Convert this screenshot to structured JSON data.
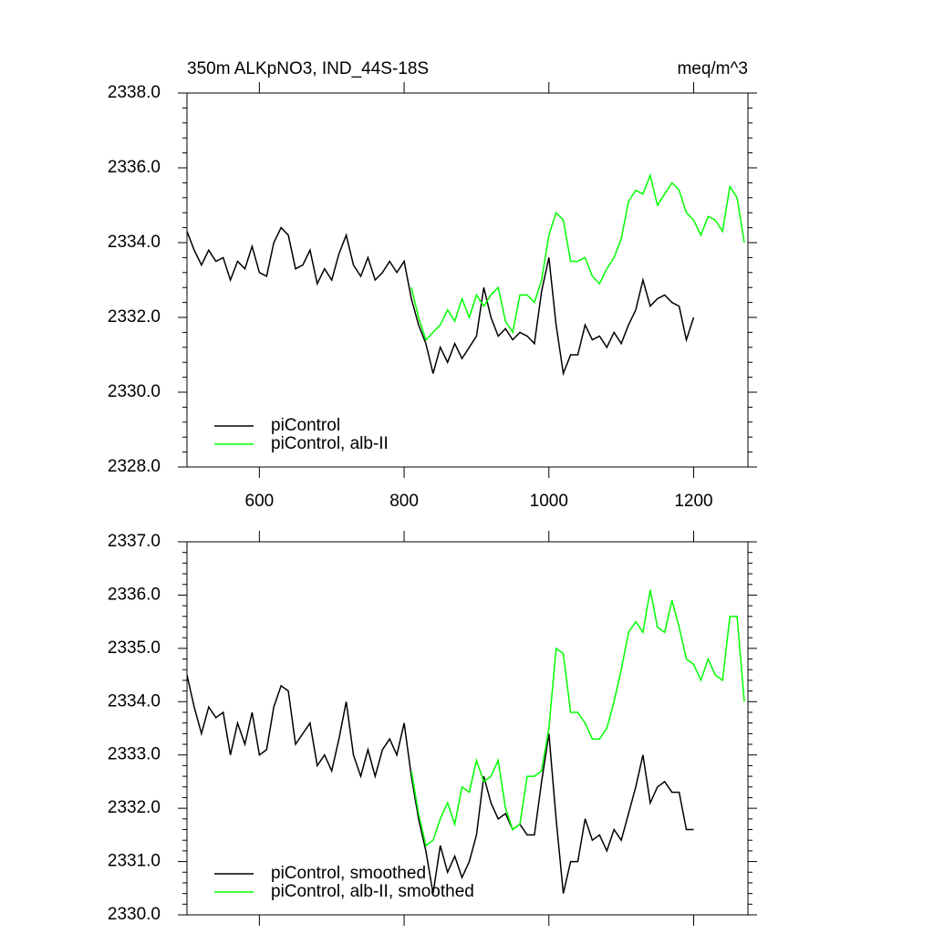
{
  "chart_data": [
    {
      "type": "line",
      "title": "350m ALKpNO3, IND_44S-18S",
      "units": "meq/m^3",
      "xlim": [
        500,
        1275
      ],
      "xticks": [
        600,
        800,
        1000,
        1200
      ],
      "show_xtick_labels": true,
      "ylim": [
        2328,
        2338
      ],
      "yticks": [
        {
          "value": 2328,
          "label": "2328.0"
        },
        {
          "value": 2330,
          "label": "2330.0"
        },
        {
          "value": 2332,
          "label": "2332.0"
        },
        {
          "value": 2334,
          "label": "2334.0"
        },
        {
          "value": 2336,
          "label": "2336.0"
        },
        {
          "value": 2338,
          "label": "2338.0"
        }
      ],
      "legend": "lower left",
      "series": [
        {
          "name": "piControl",
          "color": "#000000",
          "x": [
            500,
            510,
            520,
            530,
            540,
            550,
            560,
            570,
            580,
            590,
            600,
            610,
            620,
            630,
            640,
            650,
            660,
            670,
            680,
            690,
            700,
            710,
            720,
            730,
            740,
            750,
            760,
            770,
            780,
            790,
            800,
            810,
            820,
            830,
            840,
            850,
            860,
            870,
            880,
            890,
            900,
            910,
            920,
            930,
            940,
            950,
            960,
            970,
            980,
            990,
            1000,
            1010,
            1020,
            1030,
            1040,
            1050,
            1060,
            1070,
            1080,
            1090,
            1100,
            1110,
            1120,
            1130,
            1140,
            1150,
            1160,
            1170,
            1180,
            1190,
            1200
          ],
          "values": [
            2334.3,
            2333.8,
            2333.4,
            2333.8,
            2333.5,
            2333.6,
            2333.0,
            2333.5,
            2333.3,
            2333.9,
            2333.2,
            2333.1,
            2334.0,
            2334.4,
            2334.2,
            2333.3,
            2333.4,
            2333.8,
            2332.9,
            2333.3,
            2333.0,
            2333.7,
            2334.2,
            2333.4,
            2333.1,
            2333.6,
            2333.0,
            2333.2,
            2333.5,
            2333.2,
            2333.5,
            2332.5,
            2331.8,
            2331.3,
            2330.5,
            2331.2,
            2330.8,
            2331.3,
            2330.9,
            2331.2,
            2331.5,
            2332.8,
            2332.0,
            2331.5,
            2331.7,
            2331.4,
            2331.6,
            2331.5,
            2331.3,
            2332.7,
            2333.6,
            2331.8,
            2330.5,
            2331.0,
            2331.0,
            2331.8,
            2331.4,
            2331.5,
            2331.2,
            2331.6,
            2331.3,
            2331.8,
            2332.2,
            2333.0,
            2332.3,
            2332.5,
            2332.6,
            2332.4,
            2332.3,
            2331.4,
            2332.0
          ]
        },
        {
          "name": "piControl, alb-II",
          "color": "#00ff00",
          "x": [
            810,
            820,
            830,
            840,
            850,
            860,
            870,
            880,
            890,
            900,
            910,
            920,
            930,
            940,
            950,
            960,
            970,
            980,
            990,
            1000,
            1010,
            1020,
            1030,
            1040,
            1050,
            1060,
            1070,
            1080,
            1090,
            1100,
            1110,
            1120,
            1130,
            1140,
            1150,
            1160,
            1170,
            1180,
            1190,
            1200,
            1210,
            1220,
            1230,
            1240,
            1250,
            1260,
            1270
          ],
          "values": [
            2332.8,
            2332.0,
            2331.4,
            2331.6,
            2331.8,
            2332.2,
            2331.9,
            2332.5,
            2332.0,
            2332.6,
            2332.3,
            2332.6,
            2332.8,
            2331.9,
            2331.6,
            2332.6,
            2332.6,
            2332.4,
            2333.0,
            2334.2,
            2334.8,
            2334.6,
            2333.5,
            2333.5,
            2333.6,
            2333.1,
            2332.9,
            2333.3,
            2333.6,
            2334.1,
            2335.1,
            2335.4,
            2335.3,
            2335.8,
            2335.0,
            2335.3,
            2335.6,
            2335.4,
            2334.8,
            2334.6,
            2334.2,
            2334.7,
            2334.6,
            2334.3,
            2335.5,
            2335.2,
            2334.0
          ]
        }
      ]
    },
    {
      "type": "line",
      "xlim": [
        500,
        1275
      ],
      "xticks": [
        600,
        800,
        1000,
        1200
      ],
      "show_xtick_labels": false,
      "ylim": [
        2330,
        2337
      ],
      "yticks": [
        {
          "value": 2330,
          "label": "2330.0"
        },
        {
          "value": 2331,
          "label": "2331.0"
        },
        {
          "value": 2332,
          "label": "2332.0"
        },
        {
          "value": 2333,
          "label": "2333.0"
        },
        {
          "value": 2334,
          "label": "2334.0"
        },
        {
          "value": 2335,
          "label": "2335.0"
        },
        {
          "value": 2336,
          "label": "2336.0"
        },
        {
          "value": 2337,
          "label": "2337.0"
        }
      ],
      "legend": "lower left",
      "series": [
        {
          "name": "piControl, smoothed",
          "color": "#000000",
          "x": [
            500,
            510,
            520,
            530,
            540,
            550,
            560,
            570,
            580,
            590,
            600,
            610,
            620,
            630,
            640,
            650,
            660,
            670,
            680,
            690,
            700,
            710,
            720,
            730,
            740,
            750,
            760,
            770,
            780,
            790,
            800,
            810,
            820,
            830,
            840,
            850,
            860,
            870,
            880,
            890,
            900,
            910,
            920,
            930,
            940,
            950,
            960,
            970,
            980,
            990,
            1000,
            1010,
            1020,
            1030,
            1040,
            1050,
            1060,
            1070,
            1080,
            1090,
            1100,
            1110,
            1120,
            1130,
            1140,
            1150,
            1160,
            1170,
            1180,
            1190,
            1200
          ],
          "values": [
            2334.5,
            2333.9,
            2333.4,
            2333.9,
            2333.7,
            2333.8,
            2333.0,
            2333.6,
            2333.2,
            2333.8,
            2333.0,
            2333.1,
            2333.9,
            2334.3,
            2334.2,
            2333.2,
            2333.4,
            2333.6,
            2332.8,
            2333.0,
            2332.7,
            2333.3,
            2334.0,
            2333.0,
            2332.6,
            2333.1,
            2332.6,
            2333.1,
            2333.3,
            2333.0,
            2333.6,
            2332.6,
            2331.8,
            2331.2,
            2330.4,
            2331.3,
            2330.8,
            2331.1,
            2330.7,
            2331.0,
            2331.5,
            2332.6,
            2332.1,
            2331.8,
            2331.9,
            2331.6,
            2331.7,
            2331.5,
            2331.5,
            2332.5,
            2333.4,
            2331.8,
            2330.4,
            2331.0,
            2331.0,
            2331.8,
            2331.4,
            2331.5,
            2331.2,
            2331.6,
            2331.4,
            2331.9,
            2332.4,
            2333.0,
            2332.1,
            2332.4,
            2332.5,
            2332.3,
            2332.3,
            2331.6,
            2331.6
          ]
        },
        {
          "name": "piControl, alb-II, smoothed",
          "color": "#00ff00",
          "x": [
            810,
            820,
            830,
            840,
            850,
            860,
            870,
            880,
            890,
            900,
            910,
            920,
            930,
            940,
            950,
            960,
            970,
            980,
            990,
            1000,
            1010,
            1020,
            1030,
            1040,
            1050,
            1060,
            1070,
            1080,
            1090,
            1100,
            1110,
            1120,
            1130,
            1140,
            1150,
            1160,
            1170,
            1180,
            1190,
            1200,
            1210,
            1220,
            1230,
            1240,
            1250,
            1260,
            1270
          ],
          "values": [
            2332.7,
            2331.9,
            2331.3,
            2331.4,
            2331.8,
            2332.1,
            2331.7,
            2332.4,
            2332.3,
            2332.9,
            2332.5,
            2332.6,
            2332.9,
            2332.0,
            2331.6,
            2331.7,
            2332.6,
            2332.6,
            2332.7,
            2333.5,
            2335.0,
            2334.9,
            2333.8,
            2333.8,
            2333.6,
            2333.3,
            2333.3,
            2333.5,
            2334.0,
            2334.6,
            2335.3,
            2335.5,
            2335.3,
            2336.1,
            2335.4,
            2335.3,
            2335.9,
            2335.4,
            2334.8,
            2334.7,
            2334.4,
            2334.8,
            2334.5,
            2334.4,
            2335.6,
            2335.6,
            2334.0
          ]
        }
      ]
    }
  ]
}
